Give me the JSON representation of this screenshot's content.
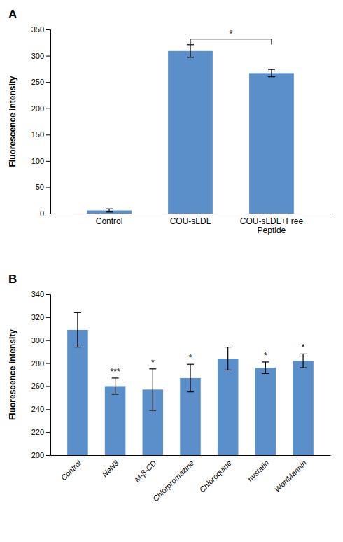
{
  "chart_data": [
    {
      "type": "bar",
      "title": "A",
      "categories": [
        "Control",
        "COU-sLDL",
        "COU-sLDL+Free\nPeptide"
      ],
      "values": [
        6,
        309,
        267
      ],
      "errors": [
        3,
        12,
        7
      ],
      "color": "#5b8fc9",
      "ylim": [
        0,
        350
      ],
      "yticks": [
        0,
        50,
        100,
        150,
        200,
        250,
        300,
        350
      ],
      "ylabel": "Fluorescence intensity",
      "grid": false,
      "annotations": [
        {
          "label": "*",
          "x1": 1,
          "x2": 2,
          "y": 332
        }
      ]
    },
    {
      "type": "bar",
      "title": "B",
      "categories": [
        "Control",
        "NaN3",
        "M-β-CD",
        "Chlorpromazine",
        "Chloroquine",
        "nystatin",
        "WortMannin"
      ],
      "values": [
        309,
        260,
        257,
        267,
        284,
        276,
        282
      ],
      "errors": [
        15,
        7,
        18,
        12,
        10,
        5,
        6
      ],
      "sig_labels": [
        null,
        "***",
        "*",
        "*",
        null,
        "*",
        "*"
      ],
      "color": "#5b8fc9",
      "ylim": [
        200,
        340
      ],
      "yticks": [
        200,
        220,
        240,
        260,
        280,
        300,
        320,
        340
      ],
      "ylabel": "Fluorescence intensity",
      "grid": false
    }
  ]
}
